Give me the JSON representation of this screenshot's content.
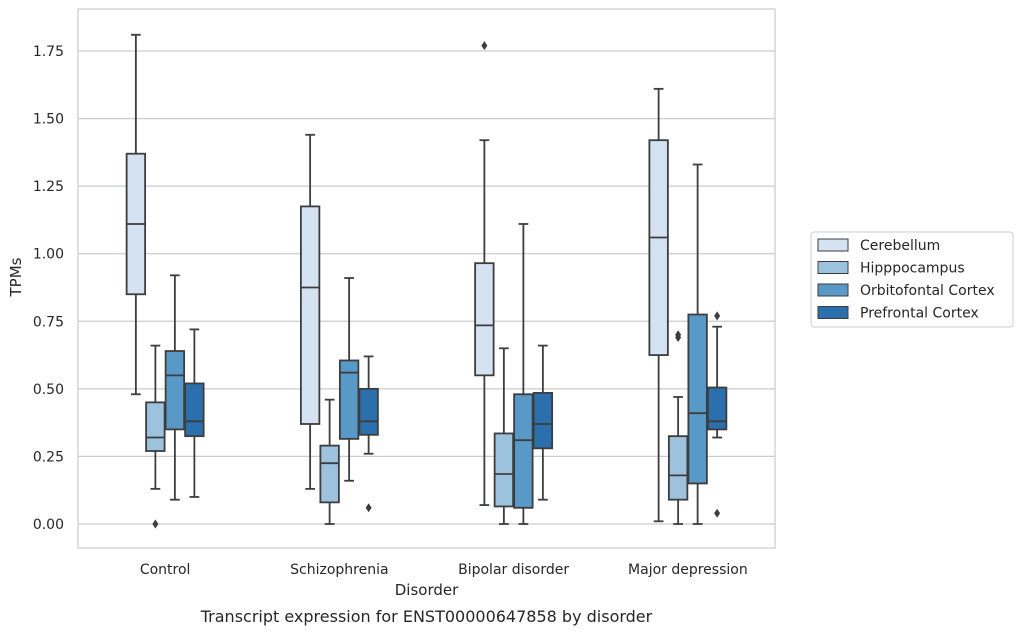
{
  "chart_data": {
    "type": "box",
    "title": "",
    "caption": "Transcript expression for ENST00000647858 by disorder",
    "xlabel": "Disorder",
    "ylabel": "TPMs",
    "ylim": [
      -0.09,
      1.9
    ],
    "yticks": [
      "0.00",
      "0.25",
      "0.50",
      "0.75",
      "1.00",
      "1.25",
      "1.50",
      "1.75"
    ],
    "grid": "horizontal",
    "legend_position": "right, outside plot",
    "categories": [
      "Control",
      "Schizophrenia",
      "Bipolar disorder",
      "Major depression"
    ],
    "series": [
      {
        "name": "Cerebellum",
        "color": "#d4e2f1",
        "boxes": [
          {
            "whisker_low": 0.48,
            "q1": 0.85,
            "median": 1.11,
            "q3": 1.37,
            "whisker_high": 1.81,
            "outliers": []
          },
          {
            "whisker_low": 0.13,
            "q1": 0.37,
            "median": 0.875,
            "q3": 1.175,
            "whisker_high": 1.44,
            "outliers": []
          },
          {
            "whisker_low": 0.07,
            "q1": 0.55,
            "median": 0.735,
            "q3": 0.965,
            "whisker_high": 1.42,
            "outliers": [
              1.77
            ]
          },
          {
            "whisker_low": 0.01,
            "q1": 0.625,
            "median": 1.06,
            "q3": 1.42,
            "whisker_high": 1.61,
            "outliers": []
          }
        ]
      },
      {
        "name": "Hipppocampus",
        "color": "#9cc2dd",
        "boxes": [
          {
            "whisker_low": 0.13,
            "q1": 0.27,
            "median": 0.32,
            "q3": 0.45,
            "whisker_high": 0.66,
            "outliers": [
              0.0
            ]
          },
          {
            "whisker_low": 0.0,
            "q1": 0.08,
            "median": 0.225,
            "q3": 0.29,
            "whisker_high": 0.46,
            "outliers": []
          },
          {
            "whisker_low": 0.0,
            "q1": 0.065,
            "median": 0.185,
            "q3": 0.335,
            "whisker_high": 0.65,
            "outliers": []
          },
          {
            "whisker_low": 0.0,
            "q1": 0.09,
            "median": 0.18,
            "q3": 0.325,
            "whisker_high": 0.47,
            "outliers": [
              0.69,
              0.7
            ]
          }
        ]
      },
      {
        "name": "Orbitofontal Cortex",
        "color": "#5899c8",
        "boxes": [
          {
            "whisker_low": 0.09,
            "q1": 0.35,
            "median": 0.55,
            "q3": 0.64,
            "whisker_high": 0.92,
            "outliers": []
          },
          {
            "whisker_low": 0.16,
            "q1": 0.315,
            "median": 0.56,
            "q3": 0.605,
            "whisker_high": 0.91,
            "outliers": []
          },
          {
            "whisker_low": 0.0,
            "q1": 0.06,
            "median": 0.31,
            "q3": 0.48,
            "whisker_high": 1.11,
            "outliers": []
          },
          {
            "whisker_low": 0.0,
            "q1": 0.15,
            "median": 0.41,
            "q3": 0.775,
            "whisker_high": 1.33,
            "outliers": []
          }
        ]
      },
      {
        "name": "Prefrontal Cortex",
        "color": "#2c6fad",
        "boxes": [
          {
            "whisker_low": 0.1,
            "q1": 0.325,
            "median": 0.38,
            "q3": 0.52,
            "whisker_high": 0.72,
            "outliers": []
          },
          {
            "whisker_low": 0.26,
            "q1": 0.33,
            "median": 0.38,
            "q3": 0.5,
            "whisker_high": 0.62,
            "outliers": [
              0.06
            ]
          },
          {
            "whisker_low": 0.09,
            "q1": 0.28,
            "median": 0.37,
            "q3": 0.485,
            "whisker_high": 0.66,
            "outliers": []
          },
          {
            "whisker_low": 0.32,
            "q1": 0.35,
            "median": 0.38,
            "q3": 0.505,
            "whisker_high": 0.73,
            "outliers": [
              0.77,
              0.04
            ]
          }
        ]
      }
    ]
  }
}
